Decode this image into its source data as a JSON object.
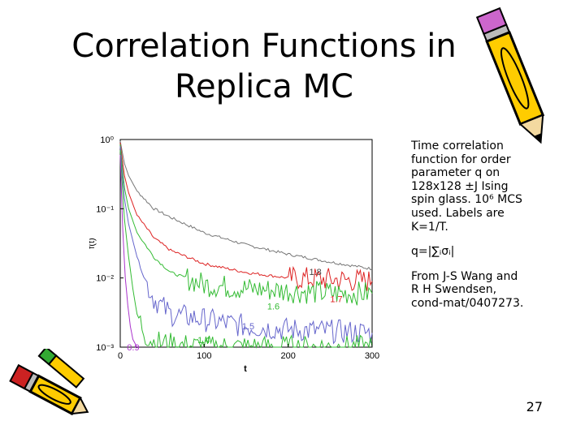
{
  "slide": {
    "title_line1": "Correlation Functions in",
    "title_line2": "Replica MC",
    "page_number": "27"
  },
  "description": {
    "para1": "Time correlation function for order parameter q on 128x128 ±J Ising spin glass. 10⁶ MCS used. Labels are K=1/T.",
    "para2": "q=|∑ᵢσᵢ|",
    "para3": "From J-S Wang and R H Swendsen, cond-mat/0407273."
  },
  "chart_data": {
    "type": "line",
    "xlabel": "t",
    "ylabel": "f(t)",
    "xlim": [
      0,
      300
    ],
    "ylim": [
      0.001,
      1
    ],
    "yscale": "log",
    "x_ticks": [
      "0",
      "100",
      "200",
      "300"
    ],
    "y_ticks": [
      "10⁰",
      "10⁻¹",
      "10⁻²",
      "10⁻³"
    ],
    "series": [
      {
        "name": "1.8",
        "color": "#777777",
        "x": [
          0,
          5,
          10,
          20,
          40,
          60,
          100,
          150,
          200,
          250,
          300
        ],
        "y": [
          0.95,
          0.45,
          0.3,
          0.18,
          0.1,
          0.075,
          0.045,
          0.03,
          0.022,
          0.017,
          0.0135
        ]
      },
      {
        "name": "1.7",
        "color": "#dd2222",
        "x": [
          0,
          5,
          10,
          20,
          40,
          60,
          100,
          150,
          200,
          250,
          300
        ],
        "y": [
          0.9,
          0.3,
          0.17,
          0.08,
          0.038,
          0.025,
          0.016,
          0.012,
          0.01,
          0.0095,
          0.009
        ]
      },
      {
        "name": "1.6",
        "color": "#33bb33",
        "x": [
          0,
          5,
          10,
          20,
          40,
          60,
          100,
          150,
          200,
          250,
          300
        ],
        "y": [
          0.85,
          0.2,
          0.1,
          0.045,
          0.02,
          0.012,
          0.008,
          0.007,
          0.0065,
          0.006,
          0.006
        ]
      },
      {
        "name": "1.5",
        "color": "#6666cc",
        "x": [
          0,
          5,
          10,
          20,
          30,
          40,
          60,
          100,
          150,
          200,
          250,
          300
        ],
        "y": [
          0.8,
          0.14,
          0.06,
          0.02,
          0.009,
          0.005,
          0.003,
          0.0025,
          0.002,
          0.0018,
          0.0017,
          0.0016
        ]
      },
      {
        "name": "1.4",
        "color": "#33bb33",
        "x": [
          0,
          5,
          10,
          15,
          20,
          30,
          40,
          60,
          100,
          150,
          200,
          250,
          300
        ],
        "y": [
          0.7,
          0.07,
          0.02,
          0.007,
          0.003,
          0.0015,
          0.0012,
          0.0011,
          0.001,
          0.001,
          0.001,
          0.001,
          0.001
        ]
      },
      {
        "name": "0.9",
        "color": "#aa33cc",
        "x": [
          0,
          3,
          6,
          9,
          12,
          15,
          20
        ],
        "y": [
          0.6,
          0.05,
          0.01,
          0.004,
          0.002,
          0.0013,
          0.001
        ]
      }
    ],
    "annotations": [
      {
        "text": "1.8",
        "x": 225,
        "y": 0.011
      },
      {
        "text": "1.7",
        "x": 250,
        "y": 0.0045
      },
      {
        "text": "1.6",
        "x": 175,
        "y": 0.0035
      },
      {
        "text": "1.5",
        "x": 145,
        "y": 0.0018
      },
      {
        "text": "1.4",
        "x": 92,
        "y": 0.00115
      },
      {
        "text": "0.9",
        "x": 8,
        "y": 0.0009
      }
    ]
  }
}
